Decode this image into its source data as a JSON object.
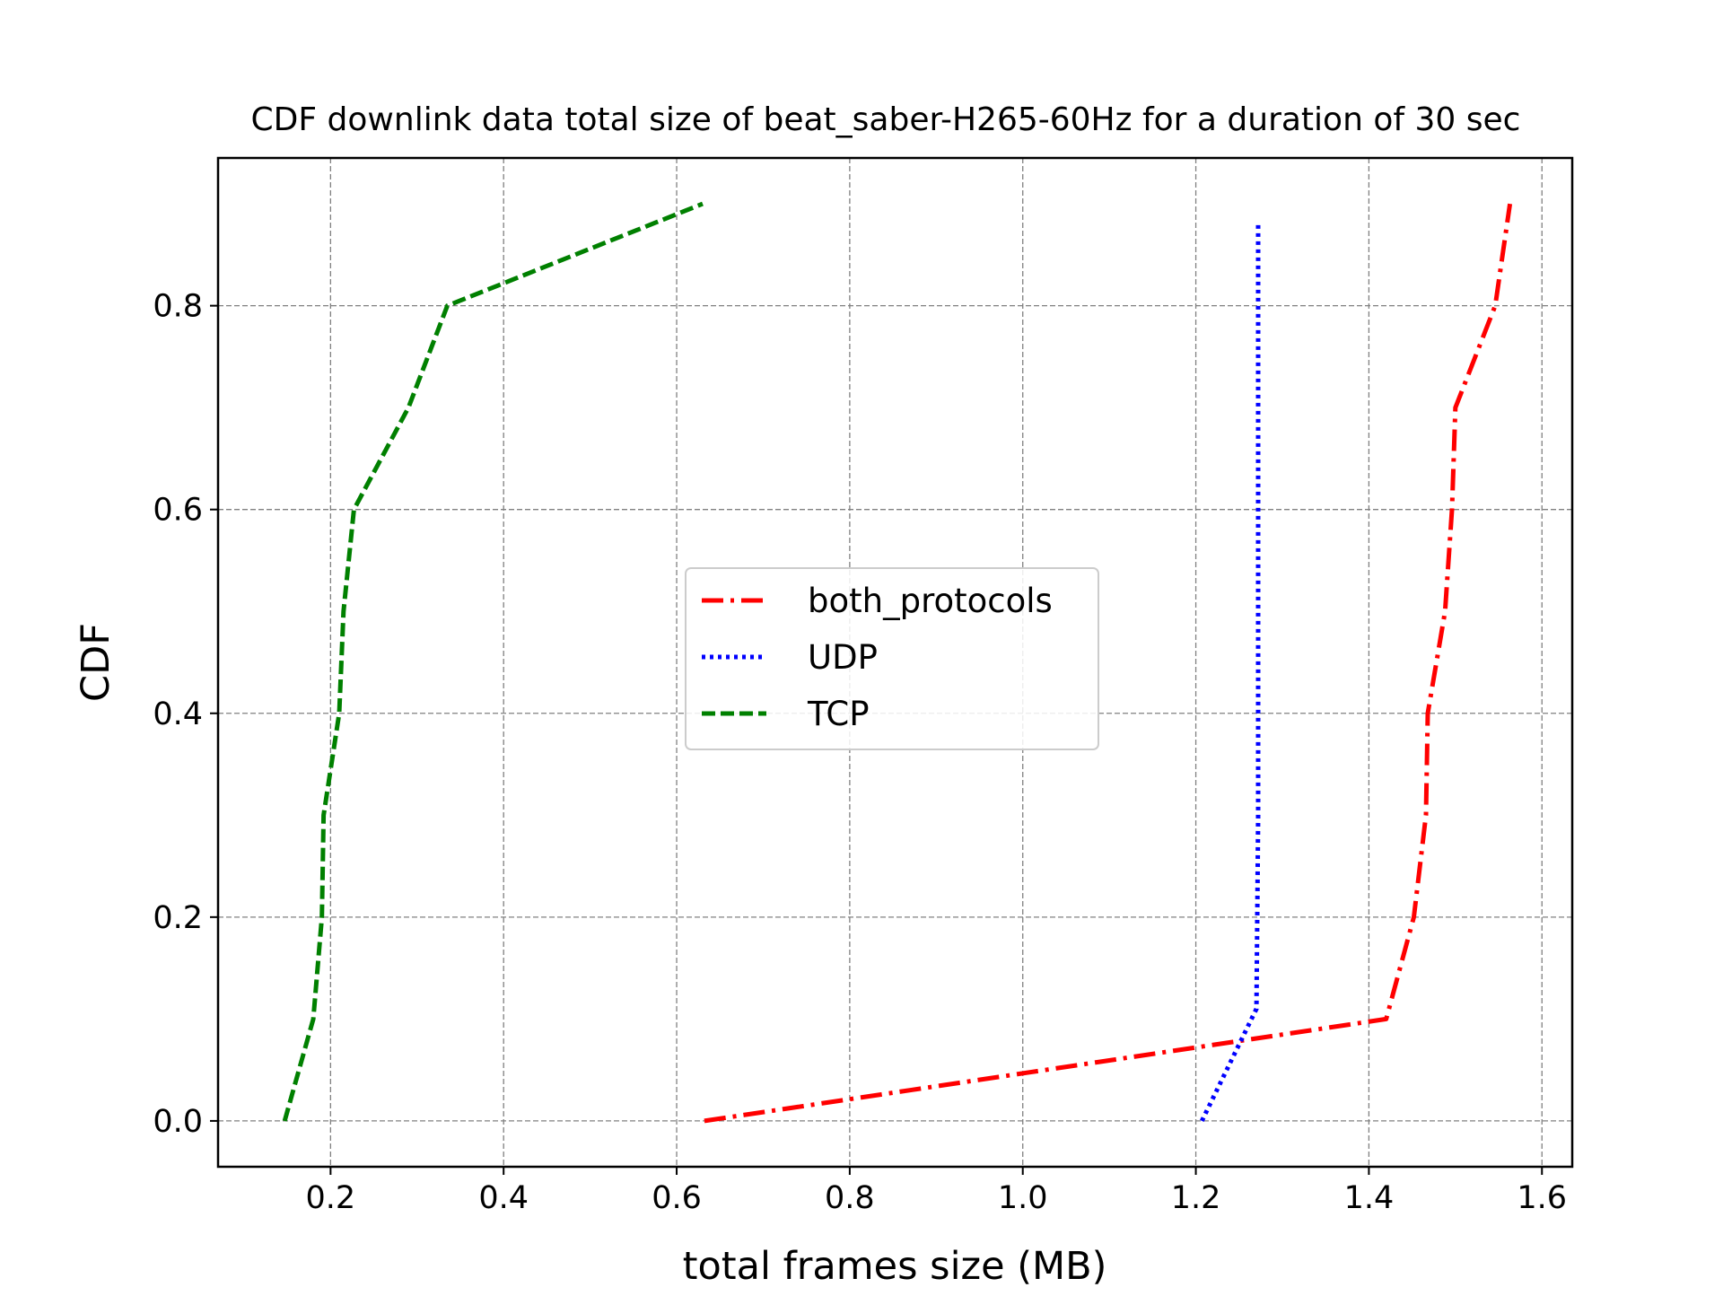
{
  "chart_data": {
    "type": "line",
    "title": "CDF downlink data total size of beat_saber-H265-60Hz for a duration of 30 sec",
    "xlabel": "total frames size (MB)",
    "ylabel": "CDF",
    "xlim": [
      0.07,
      1.635
    ],
    "ylim": [
      -0.045,
      0.945
    ],
    "xticks": [
      0.2,
      0.4,
      0.6,
      0.8,
      1.0,
      1.2,
      1.4,
      1.6
    ],
    "xtick_labels": [
      "0.2",
      "0.4",
      "0.6",
      "0.8",
      "1.0",
      "1.2",
      "1.4",
      "1.6"
    ],
    "yticks": [
      0.0,
      0.2,
      0.4,
      0.6,
      0.8
    ],
    "ytick_labels": [
      "0.0",
      "0.2",
      "0.4",
      "0.6",
      "0.8"
    ],
    "grid": true,
    "legend_position": "center",
    "series": [
      {
        "name": "both_protocols",
        "color": "#ff0000",
        "style": "dashdot",
        "x": [
          0.632,
          1.42,
          1.452,
          1.466,
          1.468,
          1.488,
          1.496,
          1.5,
          1.546,
          1.563
        ],
        "y": [
          0.0,
          0.1,
          0.2,
          0.3,
          0.4,
          0.5,
          0.6,
          0.7,
          0.8,
          0.9
        ]
      },
      {
        "name": "UDP",
        "color": "#0000ff",
        "style": "dotted",
        "x": [
          1.207,
          1.27,
          1.271,
          1.272,
          1.272,
          1.272,
          1.272,
          1.272,
          1.272,
          1.272
        ],
        "y": [
          0.0,
          0.11,
          0.2,
          0.3,
          0.4,
          0.5,
          0.6,
          0.7,
          0.8,
          0.88
        ]
      },
      {
        "name": "TCP",
        "color": "#008000",
        "style": "dashed",
        "x": [
          0.147,
          0.18,
          0.19,
          0.192,
          0.21,
          0.215,
          0.227,
          0.29,
          0.335,
          0.63
        ],
        "y": [
          0.0,
          0.1,
          0.2,
          0.3,
          0.4,
          0.5,
          0.6,
          0.7,
          0.8,
          0.9
        ]
      }
    ]
  }
}
